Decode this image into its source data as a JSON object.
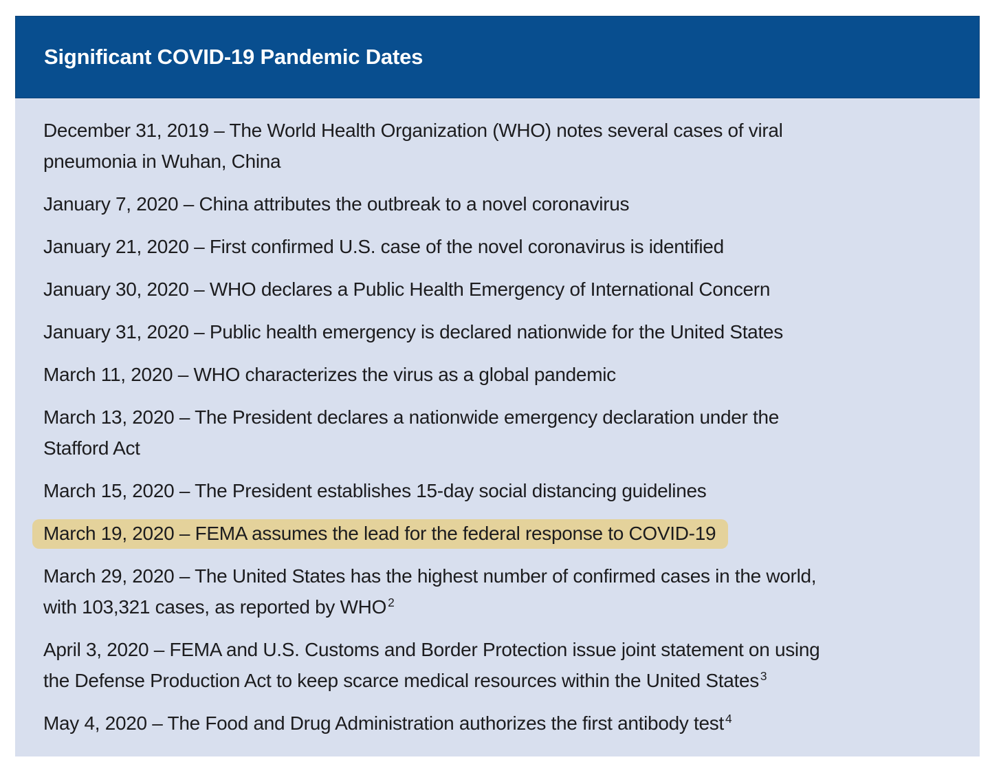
{
  "colors": {
    "header_bg": "#084e8f",
    "header_border": "#0c4378",
    "body_bg": "#d8dfee",
    "text_color": "#1c1c1e",
    "title_color": "#ffffff",
    "highlight_bg": "#e4d29b",
    "page_bg": "#ffffff"
  },
  "header": {
    "title": "Significant COVID-19 Pandemic Dates"
  },
  "entries": [
    {
      "date": "December 31, 2019",
      "lines": [
        "December 31, 2019 – The World Health Organization (WHO) notes several cases of viral",
        "pneumonia in Wuhan, China"
      ],
      "sup": ""
    },
    {
      "date": "January 7, 2020",
      "lines": [
        "January 7, 2020 – China attributes the outbreak to a novel coronavirus"
      ],
      "sup": ""
    },
    {
      "date": "January 21, 2020",
      "lines": [
        "January 21, 2020 – First confirmed U.S. case of the novel coronavirus is identified"
      ],
      "sup": ""
    },
    {
      "date": "January 30, 2020",
      "lines": [
        "January 30, 2020 – WHO declares a Public Health Emergency of International Concern"
      ],
      "sup": ""
    },
    {
      "date": "January 31, 2020",
      "lines": [
        "January 31, 2020 – Public health emergency is declared nationwide for the United States"
      ],
      "sup": ""
    },
    {
      "date": "March 11, 2020",
      "lines": [
        "March 11, 2020 – WHO characterizes the virus as a global pandemic"
      ],
      "sup": ""
    },
    {
      "date": "March 13, 2020",
      "lines": [
        "March 13, 2020 – The President declares a nationwide emergency declaration under the",
        "Stafford Act"
      ],
      "sup": ""
    },
    {
      "date": "March 15, 2020",
      "lines": [
        "March 15, 2020 – The President establishes 15-day social distancing guidelines"
      ],
      "sup": ""
    },
    {
      "date": "March 19, 2020",
      "lines": [
        "March 19, 2020 – FEMA assumes the lead for the federal response to COVID-19"
      ],
      "sup": "",
      "highlighted": true
    },
    {
      "date": "March 29, 2020",
      "lines": [
        "March 29, 2020 – The United States has the highest number of confirmed cases in the world,",
        "with 103,321 cases, as reported by WHO"
      ],
      "sup": "2"
    },
    {
      "date": "April 3, 2020",
      "lines": [
        "April 3, 2020 – FEMA and U.S. Customs and Border Protection issue joint statement on using",
        "the Defense Production Act to keep scarce medical resources within the United States"
      ],
      "sup": "3"
    },
    {
      "date": "May 4, 2020",
      "lines": [
        "May 4, 2020 – The Food and Drug Administration authorizes the first antibody test"
      ],
      "sup": "4"
    }
  ]
}
